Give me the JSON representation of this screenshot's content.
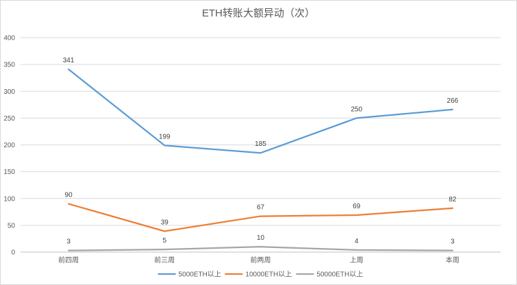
{
  "chart_data": {
    "type": "line",
    "title": "ETH转账大额异动（次）",
    "categories": [
      "前四周",
      "前三周",
      "前两周",
      "上周",
      "本周"
    ],
    "series": [
      {
        "name": "5000ETH以上",
        "color": "#5b9bd5",
        "values": [
          341,
          199,
          185,
          250,
          266
        ]
      },
      {
        "name": "10000ETH以上",
        "color": "#ed7d31",
        "values": [
          90,
          39,
          67,
          69,
          82
        ]
      },
      {
        "name": "50000ETH以上",
        "color": "#a5a5a5",
        "values": [
          3,
          5,
          10,
          4,
          3
        ]
      }
    ],
    "ylim": [
      0,
      400
    ],
    "yticks": [
      0,
      50,
      100,
      150,
      200,
      250,
      300,
      350,
      400
    ],
    "grid": true,
    "legend": "bottom"
  }
}
